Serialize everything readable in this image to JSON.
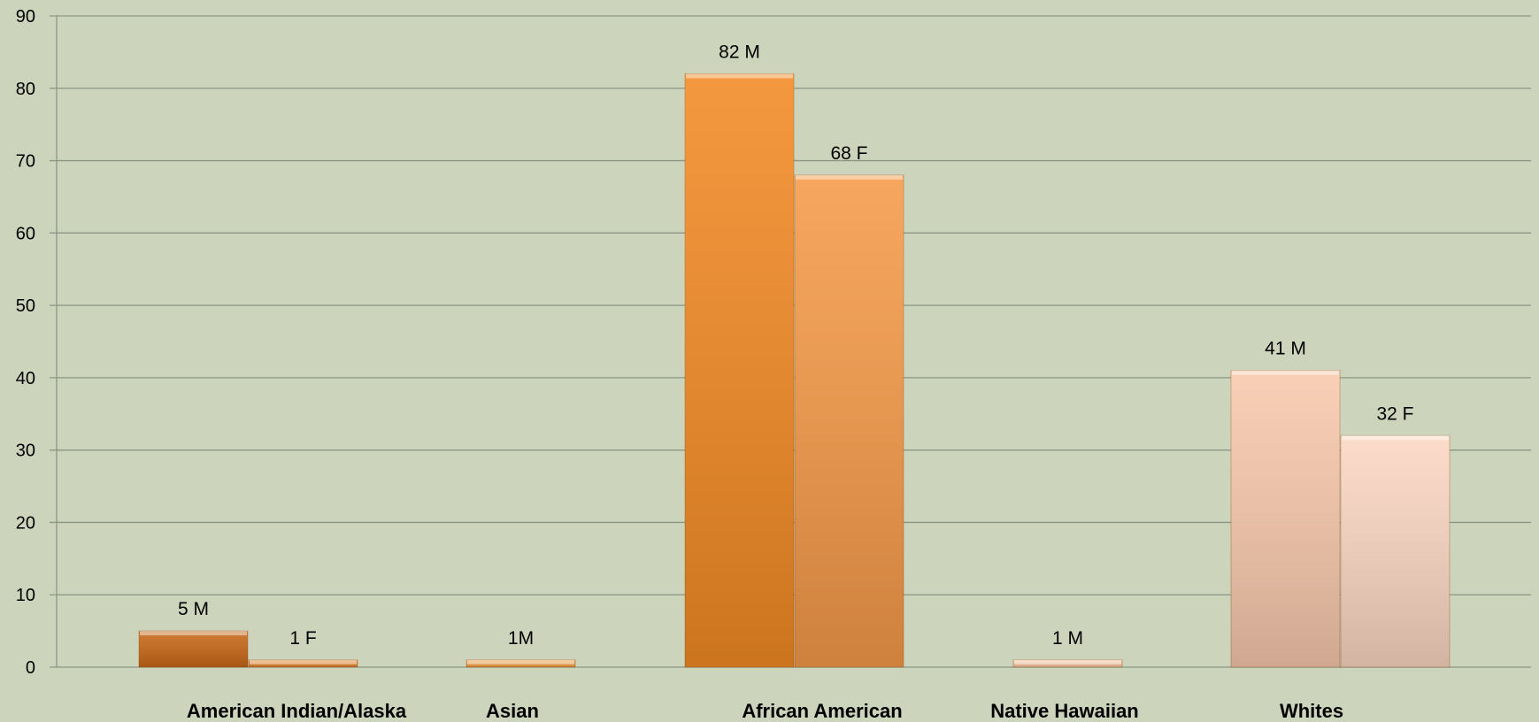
{
  "chart_data": {
    "type": "bar",
    "categories": [
      "American Indian/Alaska",
      "Asian",
      "African American",
      "Native Hawaiian",
      "Whites"
    ],
    "ylim": [
      0,
      90
    ],
    "yticks": [
      0,
      10,
      20,
      30,
      40,
      50,
      60,
      70,
      80,
      90
    ],
    "grid": true,
    "bars": [
      {
        "category": "American Indian/Alaska",
        "value": 5,
        "label": "5 M",
        "color": "#c86818"
      },
      {
        "category": "American Indian/Alaska",
        "value": 1,
        "label": "1 F",
        "color": "#e0822a"
      },
      {
        "category": "Asian",
        "value": 1,
        "label": "1M",
        "color": "#f39a40"
      },
      {
        "category": "African American",
        "value": 82,
        "label": "82 M",
        "color": "#f28a24"
      },
      {
        "category": "African American",
        "value": 68,
        "label": "68 F",
        "color": "#f59a48"
      },
      {
        "category": "Native Hawaiian",
        "value": 1,
        "label": "1 M",
        "color": "#f7c29a"
      },
      {
        "category": "Whites",
        "value": 41,
        "label": "41 M",
        "color": "#f8c8ac"
      },
      {
        "category": "Whites",
        "value": 32,
        "label": "32 F",
        "color": "#fbd6c2"
      }
    ]
  }
}
